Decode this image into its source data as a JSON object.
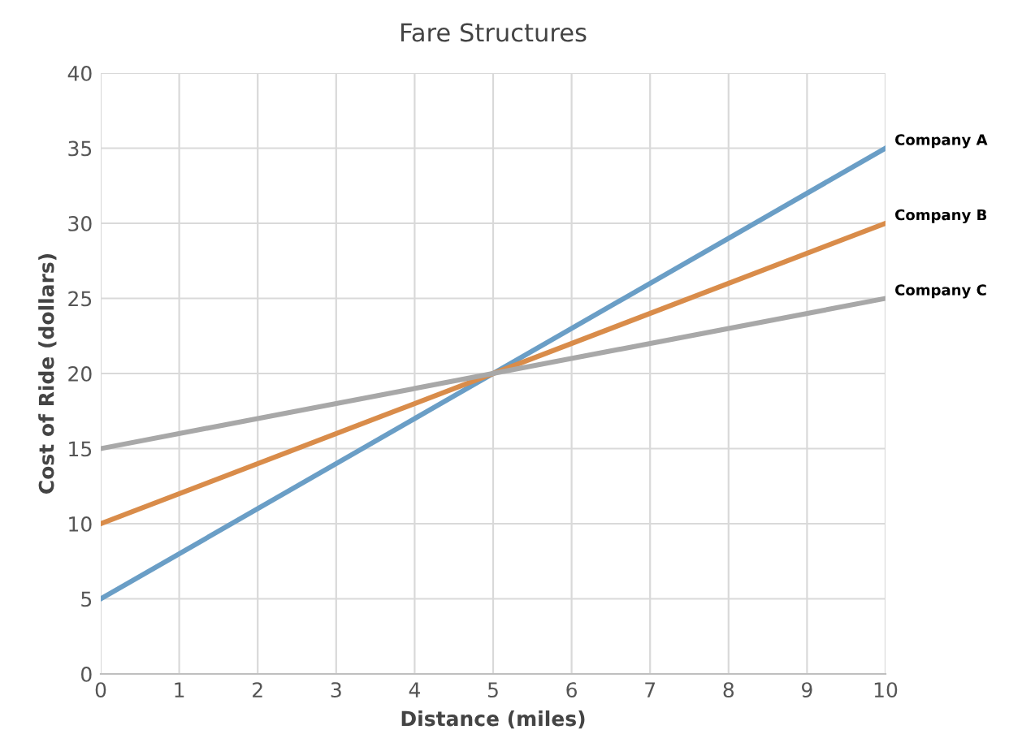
{
  "chart_data": {
    "type": "line",
    "title": "Fare Structures",
    "xlabel": "Distance (miles)",
    "ylabel": "Cost of Ride (dollars)",
    "x": [
      0,
      10
    ],
    "series": [
      {
        "name": "Company A",
        "color": "#6a9ec6",
        "values": [
          5,
          35
        ]
      },
      {
        "name": "Company B",
        "color": "#d98c4a",
        "values": [
          10,
          30
        ]
      },
      {
        "name": "Company C",
        "color": "#a8a8a8",
        "values": [
          15,
          25
        ]
      }
    ],
    "xlim": [
      0,
      10
    ],
    "xticks": [
      0,
      1,
      2,
      3,
      4,
      5,
      6,
      7,
      8,
      9,
      10
    ],
    "ylim": [
      0,
      40
    ],
    "yticks": [
      0,
      5,
      10,
      15,
      20,
      25,
      30,
      35,
      40
    ],
    "grid": true,
    "marker": "none",
    "line_style": "solid"
  }
}
